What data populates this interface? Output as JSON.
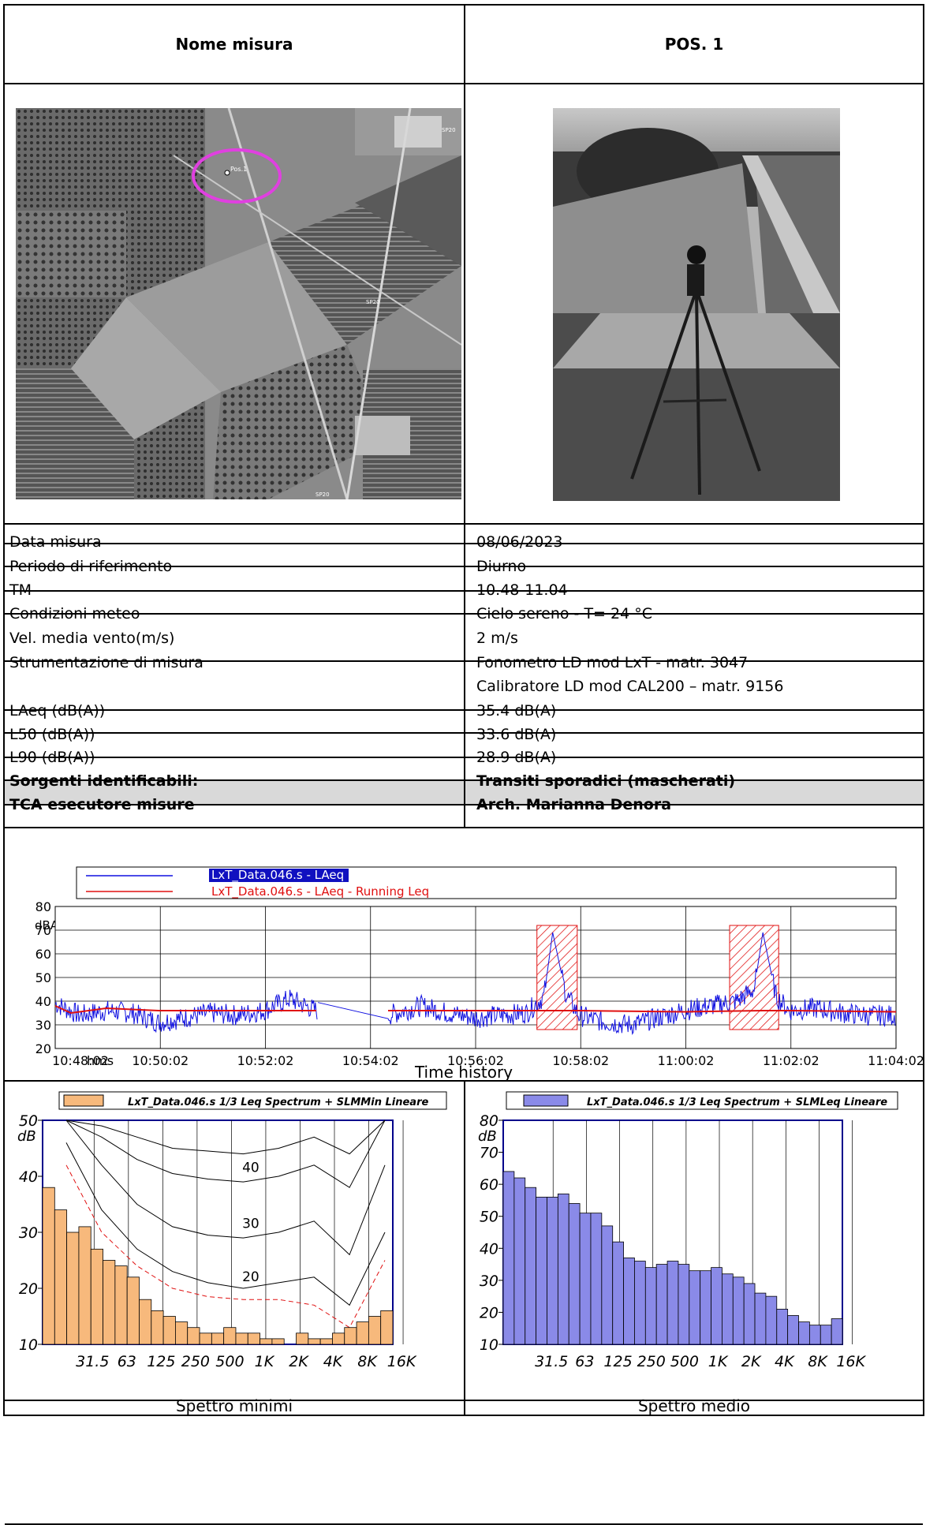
{
  "header": {
    "left": "Nome misura",
    "right": "POS. 1"
  },
  "map": {
    "labels": [
      "SP20",
      "SP20",
      "SP20"
    ],
    "marker_label": "Pos.1",
    "highlight_color": "#e040e0"
  },
  "rows": [
    {
      "label": "Data misura",
      "value": "08/06/2023"
    },
    {
      "label": "Periodo di riferimento",
      "value": "Diurno"
    },
    {
      "label": "TM",
      "value": "10.48-11.04"
    },
    {
      "label": "Condizioni meteo",
      "value": "Cielo sereno - T= 24 °C"
    },
    {
      "label": "Vel. media vento(m/s)",
      "value": "2 m/s"
    },
    {
      "label": "Strumentazione di misura",
      "value": "Fonometro LD mod LxT -  matr. 3047",
      "value2": "Calibratore LD mod CAL200 – matr. 9156"
    },
    {
      "label": "LAeq (dB(A))",
      "value": "35.4 dB(A)"
    },
    {
      "label": "L50 (dB(A))",
      "value": "33.6 dB(A)"
    },
    {
      "label": "L90 (dB(A))",
      "value": "28.9 dB(A)"
    },
    {
      "label": "Sorgenti identificabili:",
      "value": "Transiti sporadici (mascherati)"
    },
    {
      "label": "TCA esecutore misure",
      "value": "Arch. Marianna Denora"
    }
  ],
  "chart_data": [
    {
      "type": "line",
      "ylabel": "dBA",
      "ylim": [
        20,
        80
      ],
      "yticks": [
        "20",
        "30",
        "40",
        "50",
        "60",
        "70",
        "80"
      ],
      "xticks": [
        "10:48:02",
        "10:50:02",
        "10:52:02",
        "10:54:02",
        "10:56:02",
        "10:58:02",
        "11:00:02",
        "11:02:02",
        "11:04:02"
      ],
      "xunit": "hms",
      "legend": [
        "LxT_Data.046.s - LAeq",
        "LxT_Data.046.s - LAeq - Running Leq"
      ],
      "colors": {
        "laeq": "#1010e0",
        "running": "#e01010",
        "mask": "#e01010"
      },
      "masked_intervals": [
        [
          "10:57:12",
          "10:57:58"
        ],
        [
          "11:00:52",
          "11:01:48"
        ]
      ],
      "gap": [
        "10:53:02",
        "10:54:22"
      ],
      "series": [
        {
          "name": "LxT_Data.046.s - LAeq",
          "x": [
            "10:48:02",
            "10:48:30",
            "10:49:00",
            "10:49:30",
            "10:50:00",
            "10:50:30",
            "10:51:00",
            "10:51:30",
            "10:52:00",
            "10:52:30",
            "10:53:00",
            "10:54:22",
            "10:55:00",
            "10:55:30",
            "10:56:00",
            "10:56:30",
            "10:57:00",
            "10:57:20",
            "10:57:30",
            "10:57:45",
            "10:58:00",
            "10:58:30",
            "10:59:00",
            "10:59:30",
            "11:00:00",
            "11:00:30",
            "11:01:00",
            "11:01:20",
            "11:01:30",
            "11:01:45",
            "11:02:00",
            "11:02:30",
            "11:03:00",
            "11:03:30",
            "11:04:02"
          ],
          "values": [
            39,
            34,
            36,
            35,
            31,
            33,
            35,
            34,
            36,
            41,
            36,
            34,
            38,
            35,
            33,
            34,
            35,
            42,
            69,
            43,
            34,
            31,
            30,
            33,
            36,
            38,
            40,
            45,
            69,
            42,
            36,
            37,
            35,
            34,
            34
          ]
        },
        {
          "name": "LxT_Data.046.s - LAeq - Running Leq",
          "x": [
            "10:48:02",
            "10:48:20",
            "10:49:00",
            "10:50:00",
            "10:51:00",
            "10:52:00",
            "10:53:00",
            "10:54:22",
            "10:56:00",
            "10:57:30",
            "10:58:00",
            "11:00:00",
            "11:01:30",
            "11:02:00",
            "11:04:02"
          ],
          "values": [
            38,
            35,
            37,
            36,
            36,
            36,
            36,
            36,
            36,
            36,
            36,
            35.5,
            36,
            36,
            35.5
          ]
        }
      ],
      "caption": "Time history"
    },
    {
      "type": "bar",
      "title": "LxT_Data.046.s 1/3 Leq Spectrum + SLMMin Lineare",
      "ylabel": "dB",
      "ylim": [
        10,
        50
      ],
      "yticks": [
        "10",
        "20",
        "30",
        "40",
        "50"
      ],
      "xticks": [
        "31.5",
        "63",
        "125",
        "250",
        "500",
        "1K",
        "2K",
        "4K",
        "8K",
        "16K"
      ],
      "bar_color": "#f7b97c",
      "curve_labels": [
        "40",
        "30",
        "20"
      ],
      "values": [
        38,
        34,
        30,
        31,
        27,
        25,
        24,
        22,
        18,
        16,
        15,
        14,
        13,
        12,
        12,
        13,
        12,
        12,
        11,
        11,
        10,
        12,
        11,
        11,
        12,
        13,
        14,
        15,
        16
      ],
      "caption": "Spettro minimi"
    },
    {
      "type": "bar",
      "title": "LxT_Data.046.s 1/3 Leq Spectrum + SLMLeq Lineare",
      "ylabel": "dB",
      "ylim": [
        10,
        80
      ],
      "yticks": [
        "10",
        "20",
        "30",
        "40",
        "50",
        "60",
        "70",
        "80"
      ],
      "xticks": [
        "31.5",
        "63",
        "125",
        "250",
        "500",
        "1K",
        "2K",
        "4K",
        "8K",
        "16K"
      ],
      "bar_color": "#8a8ae8",
      "values": [
        64,
        62,
        59,
        56,
        56,
        57,
        54,
        51,
        51,
        47,
        42,
        37,
        36,
        34,
        35,
        36,
        35,
        33,
        33,
        34,
        32,
        31,
        29,
        26,
        25,
        21,
        19,
        17,
        16,
        16,
        18
      ],
      "caption": "Spettro medio"
    }
  ]
}
